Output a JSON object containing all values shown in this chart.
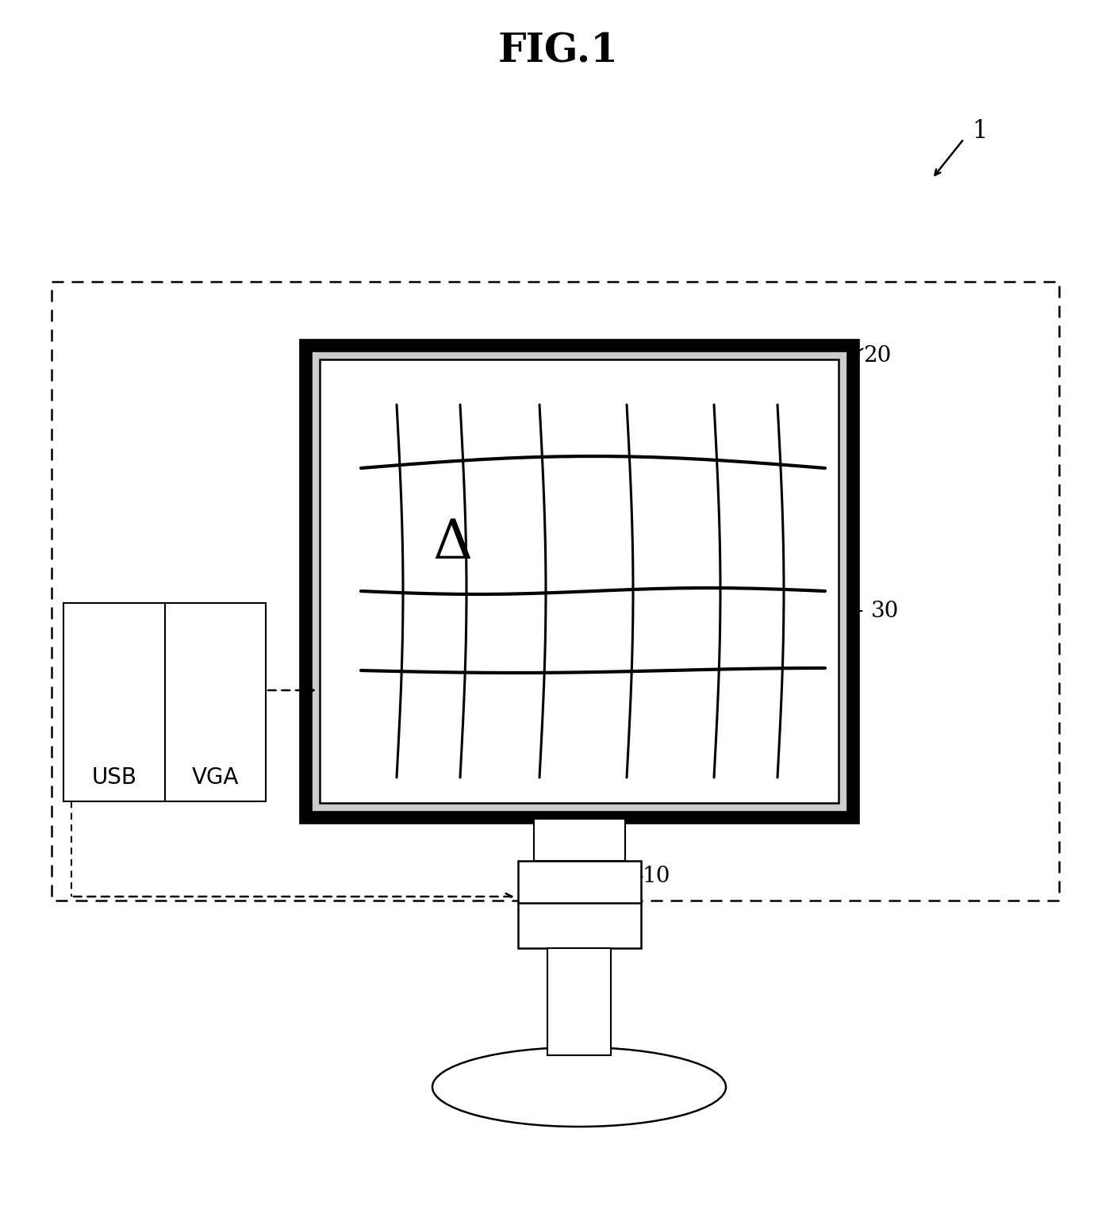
{
  "title": "FIG.1",
  "title_fontsize": 36,
  "title_fontweight": "bold",
  "bg_color": "#ffffff",
  "label_1": "1",
  "label_10": "10",
  "label_20": "20",
  "label_30": "30",
  "label_USB": "USB",
  "label_VGA": "VGA",
  "label_delta": "Δ",
  "fig_width": 14.08,
  "fig_height": 15.2
}
